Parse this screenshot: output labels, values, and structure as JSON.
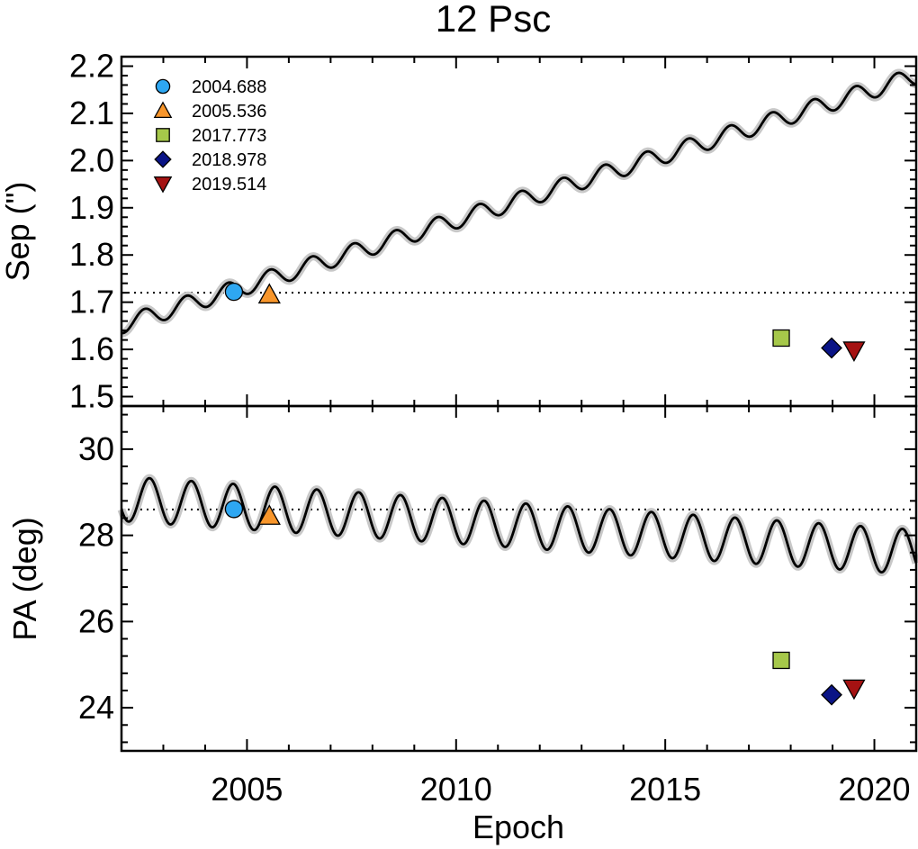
{
  "chart_data": {
    "type": "scatter",
    "title": "12 Psc",
    "xlabel": "Epoch",
    "xlim": [
      2002.0,
      2021.0
    ],
    "x_ticks": [
      2005,
      2010,
      2015,
      2020
    ],
    "x_tick_labels": [
      "2005",
      "2010",
      "2015",
      "2020"
    ],
    "panels": [
      {
        "name": "separation",
        "ylabel": "Sep (\")",
        "ylim": [
          1.48,
          2.22
        ],
        "y_ticks": [
          1.5,
          1.6,
          1.7,
          1.8,
          1.9,
          2.0,
          2.1,
          2.2
        ],
        "y_tick_labels": [
          "1.5",
          "1.6",
          "1.7",
          "1.8",
          "1.9",
          "2.0",
          "2.1",
          "2.2"
        ],
        "reference_line": 1.72,
        "model_curve": {
          "intercept_at_2002": 1.652,
          "slope_per_year": 0.02775,
          "amplitude": 0.0185,
          "period_years": 1.0,
          "phase_ref_epoch": 2002.55
        }
      },
      {
        "name": "position_angle",
        "ylabel": "PA (deg)",
        "ylim": [
          23.0,
          31.0
        ],
        "y_ticks": [
          24,
          26,
          28,
          30
        ],
        "y_tick_labels": [
          "24",
          "26",
          "28",
          "30"
        ],
        "reference_line": 28.6,
        "model_curve": {
          "intercept_at_2002": 28.85,
          "slope_per_year": -0.0653,
          "amplitude": 0.52,
          "period_years": 1.0,
          "phase_ref_epoch": 2002.67
        }
      }
    ],
    "series": [
      {
        "name": "2004.688",
        "marker": "circle",
        "color": "#2EA7F2",
        "epoch": 2004.688,
        "sep": 1.722,
        "pa": 28.61
      },
      {
        "name": "2005.536",
        "marker": "triangle-up",
        "color": "#F8962B",
        "epoch": 2005.536,
        "sep": 1.716,
        "pa": 28.45
      },
      {
        "name": "2017.773",
        "marker": "square",
        "color": "#A6C84A",
        "epoch": 2017.773,
        "sep": 1.624,
        "pa": 25.1
      },
      {
        "name": "2018.978",
        "marker": "diamond",
        "color": "#0A1486",
        "epoch": 2018.978,
        "sep": 1.603,
        "pa": 24.3
      },
      {
        "name": "2019.514",
        "marker": "triangle-down",
        "color": "#A51212",
        "epoch": 2019.514,
        "sep": 1.598,
        "pa": 24.45
      }
    ]
  }
}
